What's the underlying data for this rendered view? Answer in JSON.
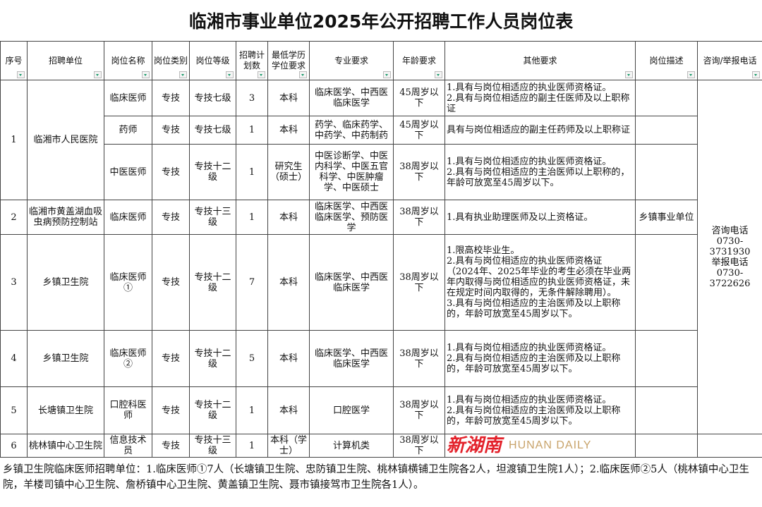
{
  "title": "临湘市事业单位2025年公开招聘工作人员岗位表",
  "headers": [
    "序号",
    "招聘单位",
    "岗位名称",
    "岗位类别",
    "岗位等级",
    "招聘计划数",
    "最低学历学位要求",
    "专业要求",
    "年龄要求",
    "其他要求",
    "岗位描述",
    "咨询/举报电话"
  ],
  "contact": [
    "咨询电话",
    "0730-3731930",
    "举报电话",
    "0730-3722626"
  ],
  "rows": [
    {
      "no": "1",
      "unit": "临湘市人民医院",
      "post": "临床医师",
      "type": "专技",
      "level": "专技七级",
      "count": "3",
      "edu": "本科",
      "major": "临床医学、中西医临床医学",
      "age": "45周岁以下",
      "other": "1.具有与岗位相适应的执业医师资格证。\n2.具有与岗位相适应的副主任医师及以上职称证",
      "desc": ""
    },
    {
      "post": "药师",
      "type": "专技",
      "level": "专技七级",
      "count": "1",
      "edu": "本科",
      "major": "药学、临床药学、中药学、中药制药",
      "age": "45周岁以下",
      "other": "具有与岗位相适应的副主任药师及以上职称证",
      "desc": ""
    },
    {
      "post": "中医医师",
      "type": "专技",
      "level": "专技十二级",
      "count": "1",
      "edu": "研究生（硕士）",
      "major": "中医诊断学、中医内科学、中医五官科学、中医肿瘤学、中医硕士",
      "age": "38周岁以下",
      "other": "1.具有与岗位相适应的执业医师资格证。\n2.具有与岗位相适应的主治医师以上职称的，年龄可放宽至45周岁以下。",
      "desc": ""
    },
    {
      "no": "2",
      "unit": "临湘市黄盖湖血吸虫病预防控制站",
      "post": "临床医师",
      "type": "专技",
      "level": "专技十三级",
      "count": "1",
      "edu": "本科",
      "major": "临床医学、中西医临床医学、预防医学",
      "age": "38周岁以下",
      "other": "1.具有执业助理医师及以上资格证。",
      "desc": "乡镇事业单位"
    },
    {
      "no": "3",
      "unit": "乡镇卫生院",
      "post": "临床医师①",
      "type": "专技",
      "level": "专技十二级",
      "count": "7",
      "edu": "本科",
      "major": "临床医学、中西医临床医学",
      "age": "38周岁以下",
      "other": "1.限高校毕业生。\n2.具有与岗位相适应的执业医师资格证（2024年、2025年毕业的考生必须在毕业两年内取得与岗位相适应的执业医师资格证，未在规定时间内取得的，无条件解除聘用）。\n3.具有与岗位相适应的主治医师及以上职称的，年龄可放宽至45周岁以下。",
      "desc": ""
    },
    {
      "no": "4",
      "unit": "乡镇卫生院",
      "post": "临床医师②",
      "type": "专技",
      "level": "专技十二级",
      "count": "5",
      "edu": "本科",
      "major": "临床医学、中西医临床医学",
      "age": "38周岁以下",
      "other": "1.具有与岗位相适应的执业医师资格证。\n2.具有与岗位相适应的主治医师及以上职称的，年龄可放宽至45周岁以下。",
      "desc": ""
    },
    {
      "no": "5",
      "unit": "长塘镇卫生院",
      "post": "口腔科医师",
      "type": "专技",
      "level": "专技十二级",
      "count": "1",
      "edu": "本科",
      "major": "口腔医学",
      "age": "38周岁以下",
      "other": "1.具有与岗位相适应的执业医师资格证。\n2.具有与岗位相适应的主治医师及以上职称的，年龄可放宽至45周岁以下。",
      "desc": ""
    },
    {
      "no": "6",
      "unit": "桃林镇中心卫生院",
      "post": "信息技术员",
      "type": "专技",
      "level": "专技十三级",
      "count": "1",
      "edu": "本科（学士）",
      "major": "计算机类",
      "age": "38周岁以下",
      "other": "",
      "desc": ""
    }
  ],
  "footnote": "乡镇卫生院临床医师招聘单位：1.临床医师①7人（长塘镇卫生院、忠防镇卫生院、桃林镇横铺卫生院各2人，坦渡镇卫生院1人）；2.临床医师②5人（桃林镇中心卫生院，羊楼司镇中心卫生院、詹桥镇中心卫生院、黄盖镇卫生院、聂市镇接驾市卫生院各1人）。",
  "watermark": {
    "logo_cn": "新湖南",
    "logo_en": "HUNAN DAILY",
    "color": "#e3222b"
  }
}
